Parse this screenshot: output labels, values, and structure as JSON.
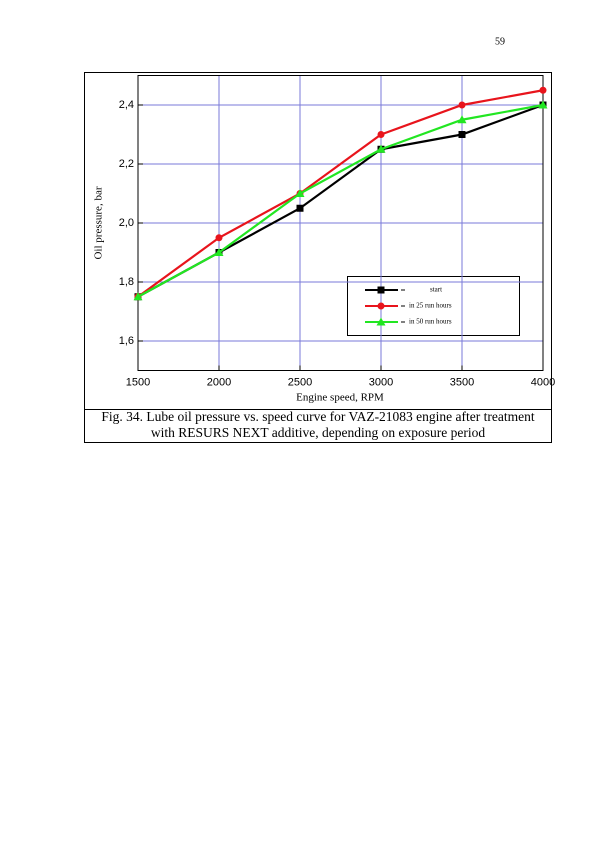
{
  "page_number": "59",
  "chart_data": {
    "type": "line",
    "x_label": "Engine speed, RPM",
    "y_label": "Oil pressure, bar",
    "x": [
      1500,
      2000,
      2500,
      3000,
      3500,
      4000
    ],
    "series": [
      {
        "name": "start",
        "color": "#000000",
        "marker": "square",
        "values": [
          1.75,
          1.9,
          2.05,
          2.25,
          2.3,
          2.4
        ]
      },
      {
        "name": "in 25 run hours",
        "color": "#e8141c",
        "marker": "circle",
        "values": [
          1.75,
          1.95,
          2.1,
          2.3,
          2.4,
          2.45
        ]
      },
      {
        "name": "in 50 run hours",
        "color": "#22e622",
        "marker": "triangle",
        "values": [
          1.75,
          1.9,
          2.1,
          2.25,
          2.35,
          2.4
        ]
      }
    ],
    "xlim": [
      1500,
      4000
    ],
    "xticks": [
      1500,
      2000,
      2500,
      3000,
      3500,
      4000
    ],
    "ylim": [
      1.5,
      2.5
    ],
    "yticks": [
      {
        "value": 1.6,
        "label": "1,6"
      },
      {
        "value": 1.8,
        "label": "1,8"
      },
      {
        "value": 2.0,
        "label": "2,0"
      },
      {
        "value": 2.2,
        "label": "2,2"
      },
      {
        "value": 2.4,
        "label": "2,4"
      }
    ],
    "grid": true,
    "grid_color": "#7a7ad8"
  },
  "caption": [
    "Fig. 34. Lube oil pressure vs. speed curve for VAZ-21083 engine after treatment",
    "with RESURS NEXT additive, depending on exposure period"
  ]
}
